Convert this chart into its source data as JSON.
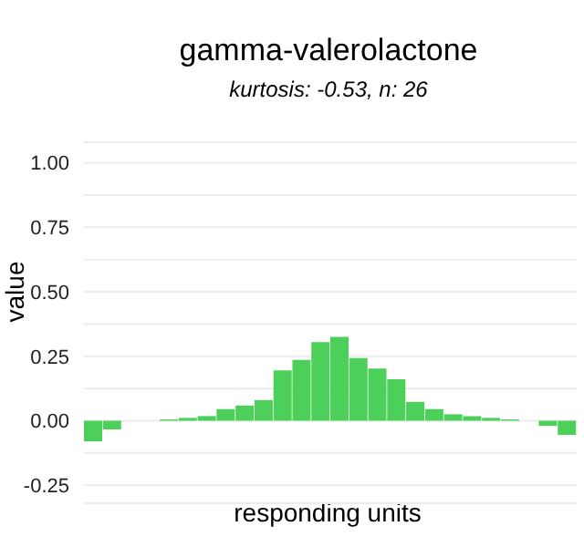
{
  "chart_data": {
    "type": "bar",
    "title": "gamma-valerolactone",
    "subtitle": "kurtosis: -0.53, n: 26",
    "xlabel": "responding units",
    "ylabel": "value",
    "categories": [
      null,
      null,
      null,
      null,
      null,
      null,
      null,
      null,
      null,
      null,
      null,
      null,
      null,
      null,
      null,
      null,
      null,
      null,
      null,
      null,
      null,
      null,
      null,
      null,
      null,
      null
    ],
    "values": [
      -0.08,
      -0.034,
      0,
      0,
      0.005,
      0.011,
      0.018,
      0.045,
      0.059,
      0.08,
      0.195,
      0.236,
      0.305,
      0.325,
      0.243,
      0.202,
      0.161,
      0.073,
      0.045,
      0.025,
      0.018,
      0.011,
      0.005,
      0,
      -0.02,
      -0.055
    ],
    "color": "#4cd05a",
    "ylim": [
      -0.32,
      1.08
    ],
    "yticks": [
      {
        "value": -0.25,
        "label": "-0.25"
      },
      {
        "value": -0.125,
        "label": null
      },
      {
        "value": 0,
        "label": "0.00"
      },
      {
        "value": 0.125,
        "label": null
      },
      {
        "value": 0.25,
        "label": "0.25"
      },
      {
        "value": 0.375,
        "label": null
      },
      {
        "value": 0.5,
        "label": "0.50"
      },
      {
        "value": 0.625,
        "label": null
      },
      {
        "value": 0.75,
        "label": "0.75"
      },
      {
        "value": 0.875,
        "label": null
      },
      {
        "value": 1,
        "label": "1.00"
      }
    ],
    "grid": "y",
    "legend": false,
    "tick_labels": "y"
  }
}
